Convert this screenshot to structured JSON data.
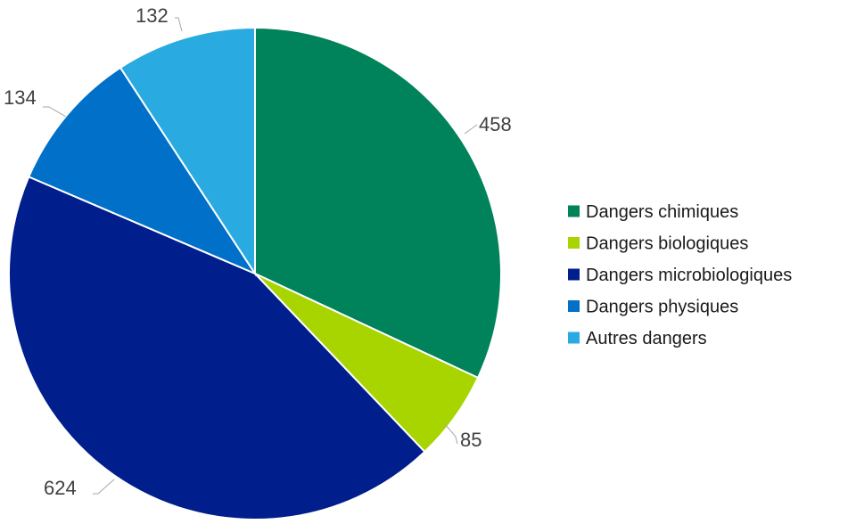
{
  "chart_data": {
    "type": "pie",
    "title": "",
    "categories": [
      "Dangers chimiques",
      "Dangers biologiques",
      "Dangers microbiologiques",
      "Dangers physiques",
      "Autres dangers"
    ],
    "values": [
      458,
      85,
      624,
      134,
      132
    ],
    "labels": [
      "458",
      "85",
      "624",
      "134",
      "132"
    ],
    "colors": [
      "#00825a",
      "#a8d400",
      "#001e8c",
      "#0070c8",
      "#29abe2"
    ],
    "start_angle": "12 o'clock",
    "direction": "clockwise",
    "legend_position": "right"
  }
}
